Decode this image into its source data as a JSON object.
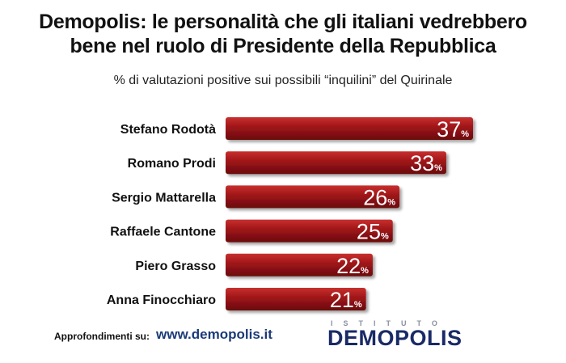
{
  "header": {
    "title_line1": "Demopolis: le personalità che gli italiani vedrebbero",
    "title_line2": "bene nel ruolo di Presidente della Repubblica",
    "subtitle": "% di valutazioni positive sui possibili “inquilini” del Quirinale"
  },
  "footer": {
    "label": "Approfondimenti su:",
    "link": "www.demopolis.it",
    "logo_top": "ISTITUTO",
    "logo_main": "DEMOPOLIS"
  },
  "colors": {
    "bar_main": "#9e1418",
    "bar_light": "#c8302e",
    "bar_dark": "#6a0c0e",
    "text": "#111111",
    "link": "#1b3a78",
    "logo": "#1a2a66"
  },
  "chart_data": {
    "type": "bar",
    "orientation": "horizontal",
    "categories": [
      "Stefano Rodotà",
      "Romano Prodi",
      "Sergio Mattarella",
      "Raffaele Cantone",
      "Piero Grasso",
      "Anna Finocchiaro"
    ],
    "values": [
      37,
      33,
      26,
      25,
      22,
      21
    ],
    "value_suffix": "%",
    "xlim": [
      0,
      37
    ],
    "grid": false,
    "legend": "none"
  }
}
